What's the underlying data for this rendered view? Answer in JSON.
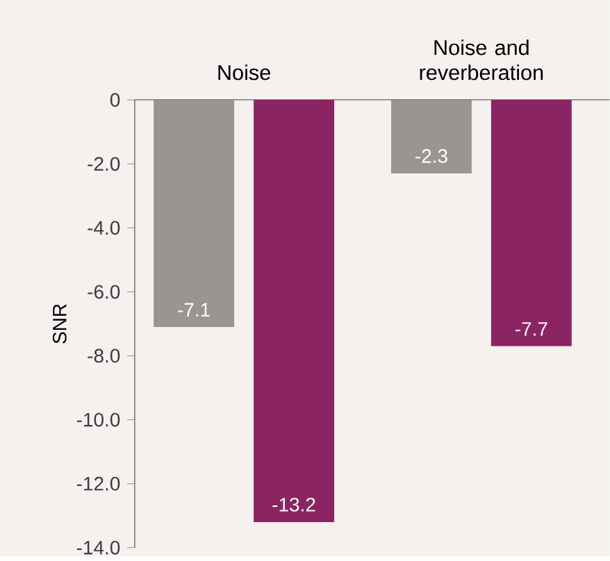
{
  "chart_data": {
    "type": "bar",
    "categories": [
      "Noise",
      "Noise and reverberation"
    ],
    "ylabel": "SNR",
    "series": [
      {
        "color": "#9a9591",
        "values": [
          -7.1,
          -2.3
        ]
      },
      {
        "color": "#8b2462",
        "values": [
          -13.2,
          -7.7
        ]
      }
    ],
    "ylim": [
      -14,
      0
    ],
    "yticks": [
      {
        "value": -14,
        "label": "-14.0"
      },
      {
        "value": -12,
        "label": "-12.0"
      },
      {
        "value": -10,
        "label": "-10.0"
      },
      {
        "value": -8,
        "label": "-8.0"
      },
      {
        "value": -6,
        "label": "-6.0"
      },
      {
        "value": -4,
        "label": "-4.0"
      },
      {
        "value": -2,
        "label": "-2.0"
      },
      0
    ],
    "data_labels": true
  }
}
